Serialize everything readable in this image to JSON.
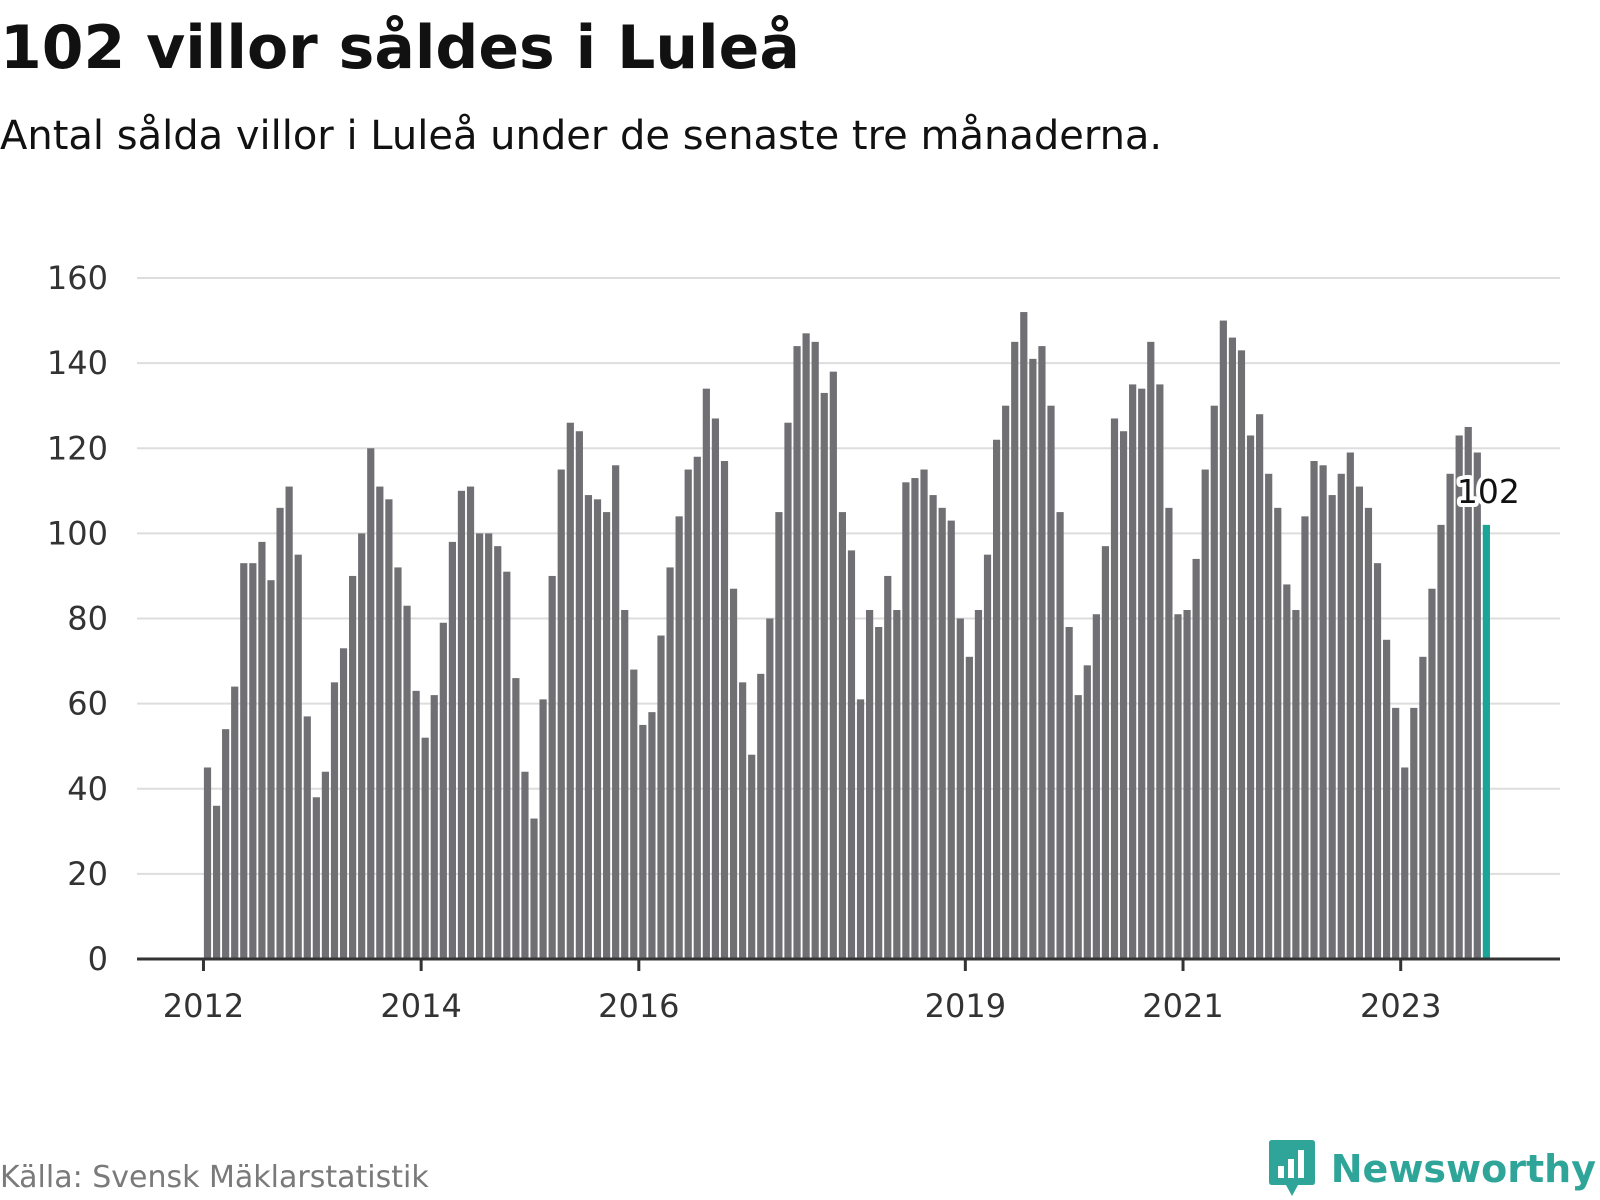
{
  "header": {
    "title": "102 villor såldes i Luleå",
    "subtitle": "Antal sålda villor i Luleå under de senaste tre månaderna."
  },
  "footer": {
    "source": "Källa: Svensk Mäklarstatistik",
    "brand": "Newsworthy"
  },
  "colors": {
    "bar": "#707074",
    "highlight": "#1aa596",
    "grid": "#dddddd",
    "axis": "#333333",
    "brand": "#2fa59a"
  },
  "chart_data": {
    "type": "bar",
    "title": "102 villor såldes i Luleå",
    "subtitle": "Antal sålda villor i Luleå under de senaste tre månaderna.",
    "xlabel": "",
    "ylabel": "",
    "ylim": [
      0,
      160
    ],
    "yticks": [
      0,
      20,
      40,
      60,
      80,
      100,
      120,
      140,
      160
    ],
    "grid": true,
    "x_start": "2012-01",
    "x_end": "2024-01",
    "xticks": [
      {
        "label": "2012",
        "month_index": 0
      },
      {
        "label": "2014",
        "month_index": 24
      },
      {
        "label": "2016",
        "month_index": 48
      },
      {
        "label": "2019",
        "month_index": 84
      },
      {
        "label": "2021",
        "month_index": 108
      },
      {
        "label": "2023",
        "month_index": 132
      }
    ],
    "values": [
      45,
      36,
      54,
      64,
      93,
      93,
      98,
      89,
      106,
      111,
      95,
      57,
      38,
      44,
      65,
      73,
      90,
      100,
      120,
      111,
      108,
      92,
      83,
      63,
      52,
      62,
      79,
      98,
      110,
      111,
      100,
      100,
      97,
      91,
      66,
      44,
      33,
      61,
      90,
      115,
      126,
      124,
      109,
      108,
      105,
      116,
      82,
      68,
      55,
      58,
      76,
      92,
      104,
      115,
      118,
      134,
      127,
      117,
      87,
      65,
      48,
      67,
      80,
      105,
      126,
      144,
      147,
      145,
      133,
      138,
      105,
      96,
      61,
      82,
      78,
      90,
      82,
      112,
      113,
      115,
      109,
      106,
      103,
      80,
      71,
      82,
      95,
      122,
      130,
      145,
      152,
      141,
      144,
      130,
      105,
      78,
      62,
      69,
      81,
      97,
      127,
      124,
      135,
      134,
      145,
      135,
      106,
      81,
      82,
      94,
      115,
      130,
      150,
      146,
      143,
      123,
      128,
      114,
      106,
      88,
      82,
      104,
      117,
      116,
      109,
      114,
      119,
      111,
      106,
      93,
      75,
      59,
      45,
      59,
      71,
      87,
      102,
      114,
      123,
      125,
      119,
      102
    ],
    "highlight": {
      "index": 141,
      "value": 102,
      "label": "102"
    }
  }
}
